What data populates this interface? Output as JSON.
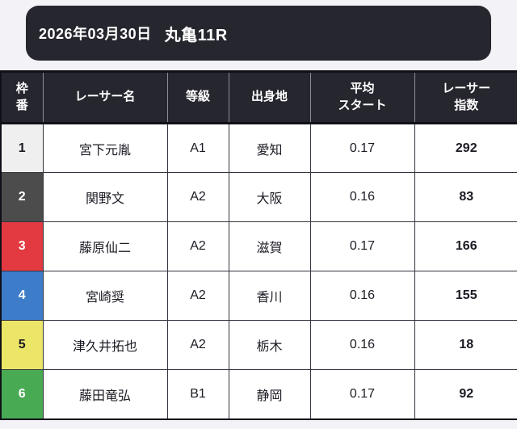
{
  "page": {
    "background": "#f3f2f7"
  },
  "topbar": {
    "bg": "#26262f",
    "text_color": "#ffffff",
    "date": "2026年03月30日",
    "race": "丸亀11R"
  },
  "table": {
    "header_bg": "#26262f",
    "header_text_color": "#ffffff",
    "border_dark": "#101018",
    "header_separator": "#8d8d97",
    "columns": {
      "waku": "枠\n番",
      "name": "レーサー名",
      "grade": "等級",
      "origin": "出身地",
      "avg_start": "平均\nスタート",
      "index": "レーサー\n指数"
    },
    "rows": [
      {
        "waku": "1",
        "waku_bg": "#efefef",
        "waku_color": "#1b1b24",
        "name": "宮下元胤",
        "grade": "A1",
        "origin": "愛知",
        "avg_start": "0.17",
        "index": "292"
      },
      {
        "waku": "2",
        "waku_bg": "#4c4c4c",
        "waku_color": "#ffffff",
        "name": "関野文",
        "grade": "A2",
        "origin": "大阪",
        "avg_start": "0.16",
        "index": "83"
      },
      {
        "waku": "3",
        "waku_bg": "#e23a40",
        "waku_color": "#ffffff",
        "name": "藤原仙二",
        "grade": "A2",
        "origin": "滋賀",
        "avg_start": "0.17",
        "index": "166"
      },
      {
        "waku": "4",
        "waku_bg": "#3d7cc9",
        "waku_color": "#ffffff",
        "name": "宮崎奨",
        "grade": "A2",
        "origin": "香川",
        "avg_start": "0.16",
        "index": "155"
      },
      {
        "waku": "5",
        "waku_bg": "#ece668",
        "waku_color": "#1b1b24",
        "name": "津久井拓也",
        "grade": "A2",
        "origin": "栃木",
        "avg_start": "0.16",
        "index": "18"
      },
      {
        "waku": "6",
        "waku_bg": "#48aa53",
        "waku_color": "#ffffff",
        "name": "藤田竜弘",
        "grade": "B1",
        "origin": "静岡",
        "avg_start": "0.17",
        "index": "92"
      }
    ]
  }
}
